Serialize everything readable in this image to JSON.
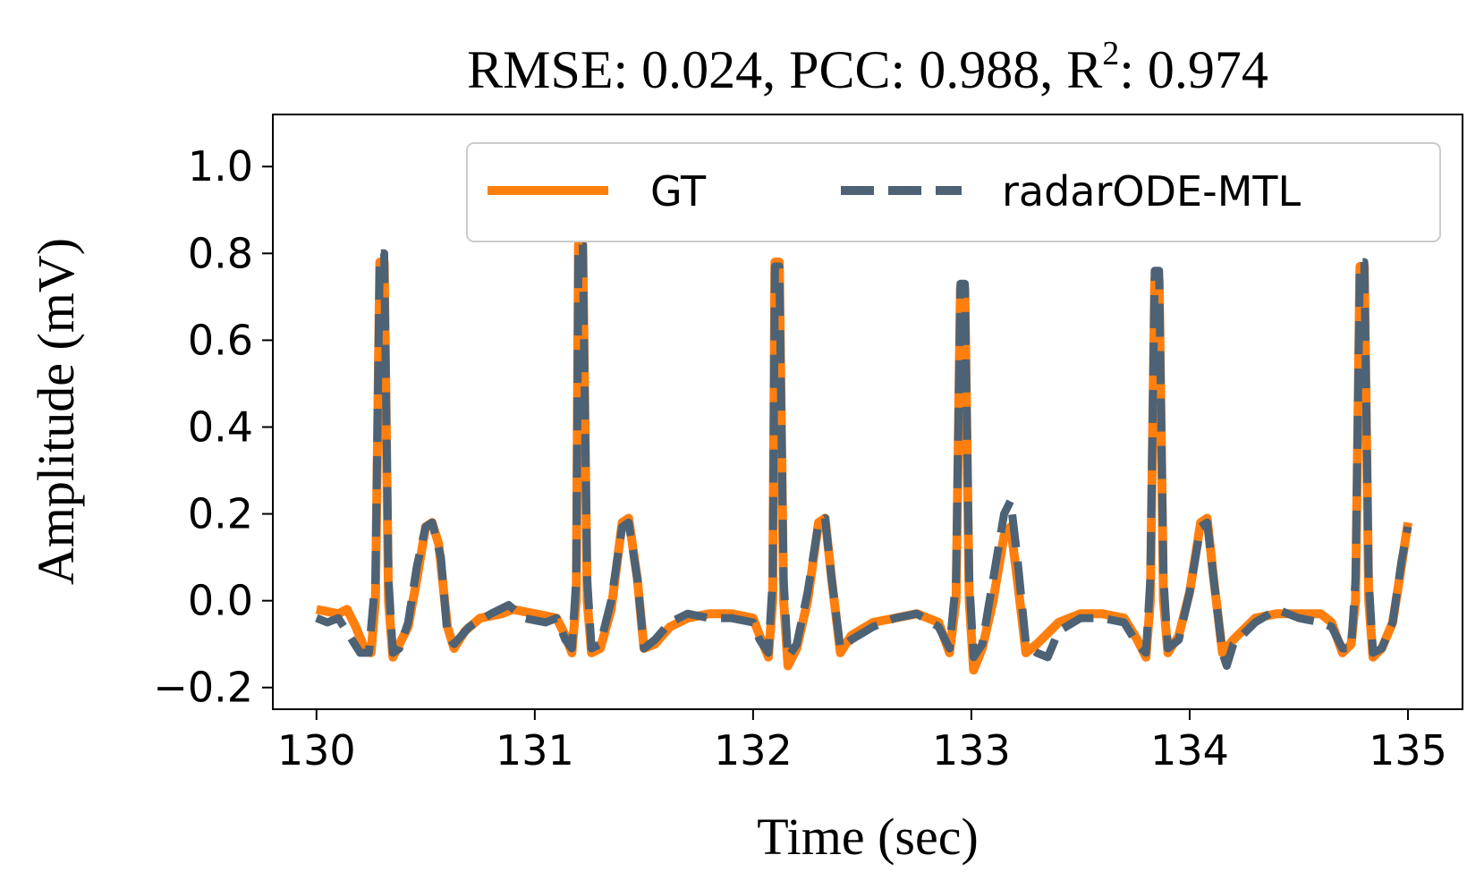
{
  "chart_data": {
    "type": "line",
    "title": {
      "prefix": "RMSE: 0.024, PCC: 0.988, R",
      "superscript": "2",
      "suffix": ": 0.974"
    },
    "xlabel": "Time (sec)",
    "ylabel": "Amplitude (mV)",
    "xlim": [
      129.8,
      135.25
    ],
    "ylim": [
      -0.25,
      1.12
    ],
    "xticks": [
      130,
      131,
      132,
      133,
      134,
      135
    ],
    "xtick_labels": [
      "130",
      "131",
      "132",
      "133",
      "134",
      "135"
    ],
    "yticks": [
      -0.2,
      0.0,
      0.2,
      0.4,
      0.6,
      0.8,
      1.0
    ],
    "ytick_labels": [
      "−0.2",
      "0.0",
      "0.2",
      "0.4",
      "0.6",
      "0.8",
      "1.0"
    ],
    "grid": false,
    "legend_position": "top-right",
    "series": [
      {
        "name": "GT",
        "color": "#ff7f0e",
        "style": "solid",
        "points": [
          [
            130.0,
            -0.02
          ],
          [
            130.1,
            -0.03
          ],
          [
            130.14,
            -0.02
          ],
          [
            130.18,
            -0.06
          ],
          [
            130.22,
            -0.11
          ],
          [
            130.25,
            -0.12
          ],
          [
            130.27,
            0.0
          ],
          [
            130.29,
            0.78
          ],
          [
            130.31,
            0.78
          ],
          [
            130.33,
            0.0
          ],
          [
            130.35,
            -0.13
          ],
          [
            130.38,
            -0.1
          ],
          [
            130.42,
            -0.06
          ],
          [
            130.46,
            0.05
          ],
          [
            130.5,
            0.17
          ],
          [
            130.53,
            0.18
          ],
          [
            130.56,
            0.13
          ],
          [
            130.6,
            -0.06
          ],
          [
            130.63,
            -0.11
          ],
          [
            130.68,
            -0.07
          ],
          [
            130.75,
            -0.04
          ],
          [
            130.85,
            -0.03
          ],
          [
            130.9,
            -0.02
          ],
          [
            131.0,
            -0.03
          ],
          [
            131.1,
            -0.04
          ],
          [
            131.14,
            -0.08
          ],
          [
            131.17,
            -0.12
          ],
          [
            131.19,
            0.0
          ],
          [
            131.2,
            0.82
          ],
          [
            131.22,
            0.82
          ],
          [
            131.24,
            0.0
          ],
          [
            131.26,
            -0.12
          ],
          [
            131.3,
            -0.11
          ],
          [
            131.35,
            -0.02
          ],
          [
            131.4,
            0.18
          ],
          [
            131.43,
            0.19
          ],
          [
            131.47,
            0.05
          ],
          [
            131.5,
            -0.11
          ],
          [
            131.55,
            -0.1
          ],
          [
            131.62,
            -0.06
          ],
          [
            131.7,
            -0.04
          ],
          [
            131.8,
            -0.03
          ],
          [
            131.9,
            -0.03
          ],
          [
            132.0,
            -0.04
          ],
          [
            132.03,
            -0.08
          ],
          [
            132.07,
            -0.13
          ],
          [
            132.09,
            0.0
          ],
          [
            132.1,
            0.78
          ],
          [
            132.12,
            0.78
          ],
          [
            132.14,
            0.0
          ],
          [
            132.16,
            -0.15
          ],
          [
            132.2,
            -0.11
          ],
          [
            132.25,
            0.0
          ],
          [
            132.3,
            0.18
          ],
          [
            132.33,
            0.19
          ],
          [
            132.36,
            0.05
          ],
          [
            132.4,
            -0.12
          ],
          [
            132.45,
            -0.08
          ],
          [
            132.55,
            -0.05
          ],
          [
            132.65,
            -0.04
          ],
          [
            132.75,
            -0.03
          ],
          [
            132.85,
            -0.05
          ],
          [
            132.9,
            -0.12
          ],
          [
            132.93,
            0.0
          ],
          [
            132.95,
            0.72
          ],
          [
            132.97,
            0.72
          ],
          [
            132.99,
            0.0
          ],
          [
            133.01,
            -0.16
          ],
          [
            133.05,
            -0.11
          ],
          [
            133.1,
            0.0
          ],
          [
            133.15,
            0.15
          ],
          [
            133.18,
            0.17
          ],
          [
            133.21,
            0.05
          ],
          [
            133.25,
            -0.12
          ],
          [
            133.3,
            -0.1
          ],
          [
            133.4,
            -0.05
          ],
          [
            133.5,
            -0.03
          ],
          [
            133.6,
            -0.03
          ],
          [
            133.7,
            -0.04
          ],
          [
            133.76,
            -0.09
          ],
          [
            133.8,
            -0.13
          ],
          [
            133.82,
            0.0
          ],
          [
            133.84,
            0.74
          ],
          [
            133.86,
            0.74
          ],
          [
            133.88,
            0.0
          ],
          [
            133.9,
            -0.12
          ],
          [
            133.95,
            -0.08
          ],
          [
            134.0,
            0.02
          ],
          [
            134.05,
            0.18
          ],
          [
            134.08,
            0.19
          ],
          [
            134.11,
            0.05
          ],
          [
            134.15,
            -0.12
          ],
          [
            134.2,
            -0.09
          ],
          [
            134.3,
            -0.04
          ],
          [
            134.4,
            -0.03
          ],
          [
            134.5,
            -0.03
          ],
          [
            134.6,
            -0.03
          ],
          [
            134.65,
            -0.05
          ],
          [
            134.7,
            -0.12
          ],
          [
            134.74,
            -0.1
          ],
          [
            134.76,
            0.0
          ],
          [
            134.78,
            0.77
          ],
          [
            134.8,
            0.77
          ],
          [
            134.82,
            0.0
          ],
          [
            134.84,
            -0.13
          ],
          [
            134.88,
            -0.11
          ],
          [
            134.93,
            -0.05
          ],
          [
            134.97,
            0.08
          ],
          [
            135.0,
            0.18
          ]
        ]
      },
      {
        "name": "radarODE-MTL",
        "color": "#4d6275",
        "style": "dashed",
        "points": [
          [
            130.0,
            -0.04
          ],
          [
            130.05,
            -0.05
          ],
          [
            130.1,
            -0.04
          ],
          [
            130.15,
            -0.08
          ],
          [
            130.2,
            -0.12
          ],
          [
            130.24,
            -0.12
          ],
          [
            130.27,
            0.05
          ],
          [
            130.29,
            0.8
          ],
          [
            130.31,
            0.8
          ],
          [
            130.33,
            0.05
          ],
          [
            130.35,
            -0.12
          ],
          [
            130.38,
            -0.11
          ],
          [
            130.42,
            -0.05
          ],
          [
            130.46,
            0.08
          ],
          [
            130.5,
            0.17
          ],
          [
            130.53,
            0.18
          ],
          [
            130.57,
            0.1
          ],
          [
            130.6,
            -0.08
          ],
          [
            130.63,
            -0.1
          ],
          [
            130.7,
            -0.06
          ],
          [
            130.8,
            -0.03
          ],
          [
            130.88,
            -0.01
          ],
          [
            130.95,
            -0.04
          ],
          [
            131.05,
            -0.05
          ],
          [
            131.1,
            -0.04
          ],
          [
            131.14,
            -0.09
          ],
          [
            131.17,
            -0.11
          ],
          [
            131.19,
            0.05
          ],
          [
            131.2,
            0.82
          ],
          [
            131.22,
            0.82
          ],
          [
            131.24,
            0.05
          ],
          [
            131.26,
            -0.11
          ],
          [
            131.3,
            -0.1
          ],
          [
            131.35,
            0.0
          ],
          [
            131.4,
            0.17
          ],
          [
            131.43,
            0.18
          ],
          [
            131.47,
            0.05
          ],
          [
            131.5,
            -0.11
          ],
          [
            131.55,
            -0.09
          ],
          [
            131.62,
            -0.05
          ],
          [
            131.7,
            -0.03
          ],
          [
            131.8,
            -0.04
          ],
          [
            131.9,
            -0.04
          ],
          [
            132.0,
            -0.05
          ],
          [
            132.03,
            -0.09
          ],
          [
            132.07,
            -0.12
          ],
          [
            132.09,
            0.05
          ],
          [
            132.1,
            0.77
          ],
          [
            132.12,
            0.77
          ],
          [
            132.14,
            0.05
          ],
          [
            132.16,
            -0.13
          ],
          [
            132.2,
            -0.1
          ],
          [
            132.25,
            0.02
          ],
          [
            132.3,
            0.18
          ],
          [
            132.33,
            0.19
          ],
          [
            132.36,
            0.05
          ],
          [
            132.4,
            -0.11
          ],
          [
            132.45,
            -0.09
          ],
          [
            132.55,
            -0.06
          ],
          [
            132.65,
            -0.04
          ],
          [
            132.75,
            -0.03
          ],
          [
            132.85,
            -0.06
          ],
          [
            132.9,
            -0.11
          ],
          [
            132.93,
            0.05
          ],
          [
            132.95,
            0.73
          ],
          [
            132.97,
            0.73
          ],
          [
            132.99,
            0.05
          ],
          [
            133.01,
            -0.13
          ],
          [
            133.05,
            -0.1
          ],
          [
            133.1,
            0.05
          ],
          [
            133.15,
            0.2
          ],
          [
            133.18,
            0.23
          ],
          [
            133.21,
            0.1
          ],
          [
            133.25,
            -0.1
          ],
          [
            133.3,
            -0.12
          ],
          [
            133.35,
            -0.13
          ],
          [
            133.4,
            -0.07
          ],
          [
            133.5,
            -0.04
          ],
          [
            133.6,
            -0.04
          ],
          [
            133.7,
            -0.05
          ],
          [
            133.76,
            -0.1
          ],
          [
            133.8,
            -0.12
          ],
          [
            133.82,
            0.05
          ],
          [
            133.84,
            0.76
          ],
          [
            133.86,
            0.76
          ],
          [
            133.88,
            0.05
          ],
          [
            133.9,
            -0.11
          ],
          [
            133.95,
            -0.09
          ],
          [
            134.0,
            0.02
          ],
          [
            134.05,
            0.17
          ],
          [
            134.08,
            0.18
          ],
          [
            134.11,
            0.05
          ],
          [
            134.15,
            -0.12
          ],
          [
            134.17,
            -0.15
          ],
          [
            134.2,
            -0.1
          ],
          [
            134.3,
            -0.05
          ],
          [
            134.4,
            -0.02
          ],
          [
            134.5,
            -0.04
          ],
          [
            134.6,
            -0.05
          ],
          [
            134.65,
            -0.06
          ],
          [
            134.7,
            -0.11
          ],
          [
            134.74,
            -0.11
          ],
          [
            134.76,
            0.05
          ],
          [
            134.78,
            0.78
          ],
          [
            134.8,
            0.78
          ],
          [
            134.82,
            0.05
          ],
          [
            134.84,
            -0.12
          ],
          [
            134.88,
            -0.11
          ],
          [
            134.93,
            -0.05
          ],
          [
            134.97,
            0.09
          ],
          [
            135.0,
            0.17
          ]
        ]
      }
    ]
  }
}
